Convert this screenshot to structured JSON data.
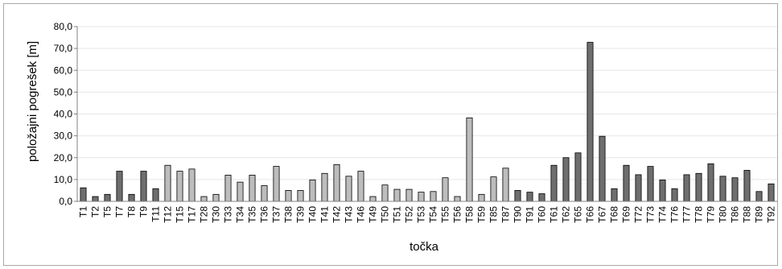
{
  "chart_data": {
    "type": "bar",
    "xlabel": "točka",
    "ylabel": "položajni pogrešek [m]",
    "ylim": [
      0,
      80
    ],
    "yticks": [
      "0,0",
      "10,0",
      "20,0",
      "30,0",
      "40,0",
      "50,0",
      "60,0",
      "70,0",
      "80,0"
    ],
    "ytick_values": [
      0,
      10,
      20,
      30,
      40,
      50,
      60,
      70,
      80
    ],
    "grid": true,
    "legend": "none",
    "categories": [
      "T1",
      "T2",
      "T5",
      "T7",
      "T8",
      "T9",
      "T11",
      "T12",
      "T15",
      "T17",
      "T28",
      "T30",
      "T33",
      "T34",
      "T35",
      "T36",
      "T37",
      "T38",
      "T39",
      "T40",
      "T41",
      "T42",
      "T43",
      "T46",
      "T49",
      "T50",
      "T51",
      "T52",
      "T53",
      "T54",
      "T55",
      "T56",
      "T58",
      "T59",
      "T85",
      "T87",
      "T90",
      "T91",
      "T60",
      "T61",
      "T62",
      "T65",
      "T66",
      "T67",
      "T68",
      "T69",
      "T72",
      "T73",
      "T74",
      "T76",
      "T77",
      "T78",
      "T79",
      "T80",
      "T86",
      "T88",
      "T89",
      "T92"
    ],
    "values": [
      6.2,
      2.2,
      3.2,
      13.8,
      3.2,
      13.8,
      5.8,
      16.5,
      13.8,
      14.8,
      2.2,
      3.2,
      12.0,
      8.8,
      12.0,
      7.2,
      16.0,
      5.0,
      5.0,
      9.8,
      12.8,
      16.8,
      11.5,
      13.8,
      2.2,
      7.5,
      5.5,
      5.5,
      4.2,
      4.5,
      10.8,
      2.2,
      38.2,
      3.2,
      11.2,
      15.2,
      5.0,
      4.2,
      3.5,
      16.5,
      20.0,
      22.2,
      72.8,
      29.8,
      5.8,
      16.5,
      12.2,
      16.0,
      9.8,
      5.8,
      12.2,
      12.8,
      17.2,
      11.5,
      10.8,
      14.2,
      4.5,
      8.0
    ],
    "bar_groups": [
      "dark",
      "dark",
      "dark",
      "dark",
      "dark",
      "dark",
      "dark",
      "light",
      "light",
      "light",
      "light",
      "light",
      "light",
      "light",
      "light",
      "light",
      "light",
      "light",
      "light",
      "light",
      "light",
      "light",
      "light",
      "light",
      "light",
      "light",
      "light",
      "light",
      "light",
      "light",
      "light",
      "light",
      "light",
      "light",
      "light",
      "light",
      "dark",
      "dark",
      "dark",
      "dark",
      "dark",
      "dark",
      "dark",
      "dark",
      "dark",
      "dark",
      "dark",
      "dark",
      "dark",
      "dark",
      "dark",
      "dark",
      "dark",
      "dark",
      "dark",
      "dark",
      "dark",
      "dark"
    ],
    "colors": {
      "dark": "#6e6e6e",
      "light": "#bdbdbd",
      "edge": "#000000",
      "grid": "#e6e6e6",
      "axis": "#808080"
    }
  }
}
